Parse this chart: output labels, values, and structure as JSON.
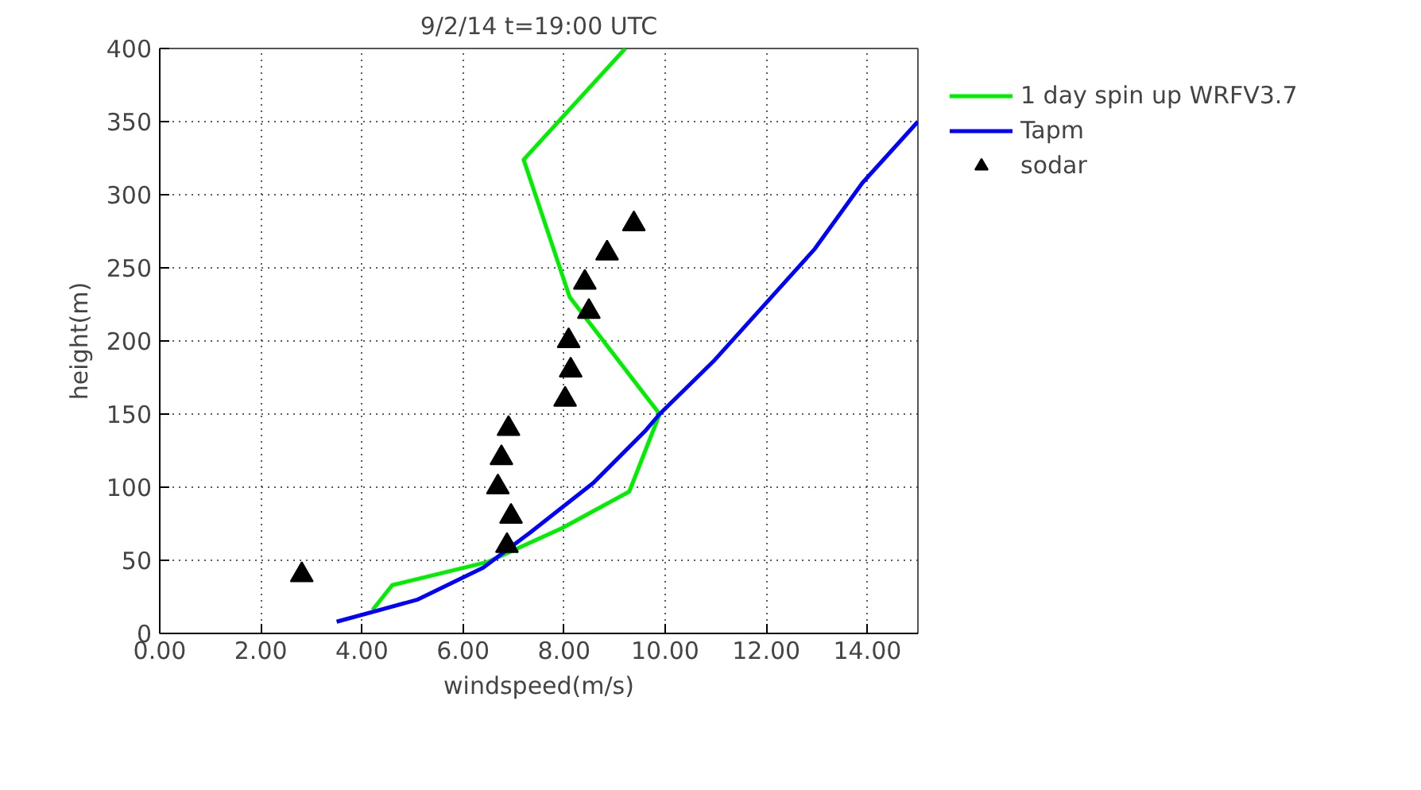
{
  "chart_data": {
    "type": "line",
    "title": "9/2/14 t=19:00 UTC",
    "xlabel": "windspeed(m/s)",
    "ylabel": "height(m)",
    "xlim": [
      0,
      15
    ],
    "ylim": [
      0,
      400
    ],
    "xticks": [
      {
        "value": 0,
        "label": "0.00"
      },
      {
        "value": 2,
        "label": "2.00"
      },
      {
        "value": 4,
        "label": "4.00"
      },
      {
        "value": 6,
        "label": "6.00"
      },
      {
        "value": 8,
        "label": "8.00"
      },
      {
        "value": 10,
        "label": "10.00"
      },
      {
        "value": 12,
        "label": "12.00"
      },
      {
        "value": 14,
        "label": "14.00"
      }
    ],
    "yticks": [
      0,
      50,
      100,
      150,
      200,
      250,
      300,
      350,
      400
    ],
    "grid": true,
    "legend": "top right",
    "series": [
      {
        "name": "1 day spin up WRFV3.7",
        "color": "#00ee00",
        "x": [
          4.21,
          4.6,
          6.5,
          7.96,
          9.29,
          9.89,
          8.11,
          7.2,
          9.21
        ],
        "values": [
          16,
          33,
          49,
          72,
          97,
          150,
          230,
          324,
          400
        ]
      },
      {
        "name": "Tapm",
        "color": "#0000ff",
        "x": [
          3.5,
          5.09,
          6.4,
          7.33,
          8.58,
          9.62,
          9.89,
          10.98,
          11.92,
          12.96,
          13.9,
          15
        ],
        "values": [
          8,
          23,
          45,
          69,
          103,
          139,
          150,
          187,
          223,
          263,
          308,
          350
        ]
      },
      {
        "name": "sodar",
        "color": "#000000",
        "type": "scatter",
        "marker": "triangle",
        "x": [
          2.81,
          6.87,
          6.95,
          6.69,
          6.76,
          6.9,
          8.02,
          8.13,
          8.09,
          8.49,
          8.41,
          8.85,
          9.38
        ],
        "values": [
          40,
          60,
          80,
          100,
          120,
          140,
          160,
          180,
          200,
          220,
          240,
          260,
          280
        ]
      }
    ]
  }
}
